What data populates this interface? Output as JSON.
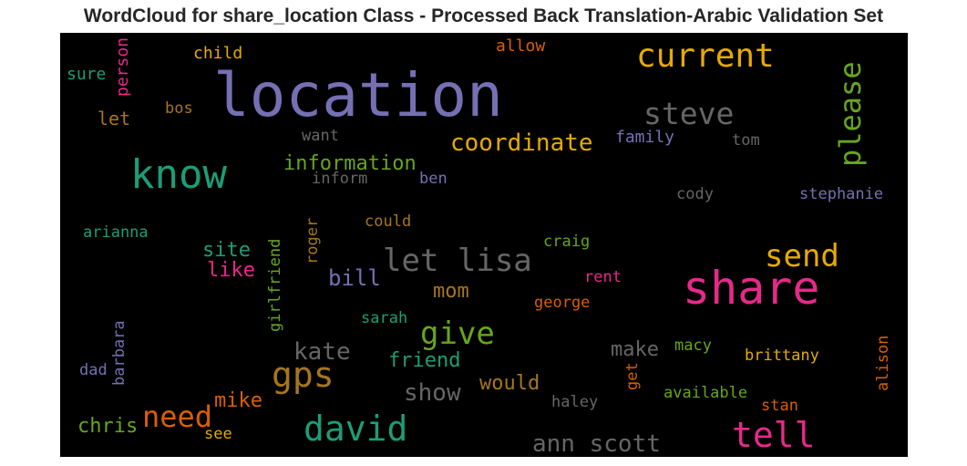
{
  "title": "WordCloud for share_location Class - Processed Back Translation-Arabic Validation Set",
  "background": "#000000",
  "words": [
    {
      "text": "location",
      "color": "#7570b3"
    },
    {
      "text": "share",
      "color": "#e7298a"
    },
    {
      "text": "know",
      "color": "#1b9e77"
    },
    {
      "text": "david",
      "color": "#1b9e77"
    },
    {
      "text": "tell",
      "color": "#e7298a"
    },
    {
      "text": "current",
      "color": "#e6ab02"
    },
    {
      "text": "steve",
      "color": "#666666"
    },
    {
      "text": "let lisa",
      "color": "#666666"
    },
    {
      "text": "please",
      "color": "#66a61e"
    },
    {
      "text": "send",
      "color": "#e6ab02"
    },
    {
      "text": "coordinate",
      "color": "#e6ab02"
    },
    {
      "text": "gps",
      "color": "#a6761d"
    },
    {
      "text": "give",
      "color": "#66a61e"
    },
    {
      "text": "need",
      "color": "#d95f02"
    },
    {
      "text": "ann scott",
      "color": "#666666"
    },
    {
      "text": "kate",
      "color": "#666666"
    },
    {
      "text": "show",
      "color": "#666666"
    },
    {
      "text": "information",
      "color": "#66a61e"
    },
    {
      "text": "would",
      "color": "#a6761d"
    },
    {
      "text": "friend",
      "color": "#1b9e77"
    },
    {
      "text": "make",
      "color": "#666666"
    },
    {
      "text": "chris",
      "color": "#66a61e"
    },
    {
      "text": "mike",
      "color": "#d95f02"
    },
    {
      "text": "bill",
      "color": "#7570b3"
    },
    {
      "text": "mom",
      "color": "#a6761d"
    },
    {
      "text": "site",
      "color": "#1b9e77"
    },
    {
      "text": "like",
      "color": "#e7298a"
    },
    {
      "text": "let",
      "color": "#a6761d"
    },
    {
      "text": "child",
      "color": "#e6ab02"
    },
    {
      "text": "allow",
      "color": "#d95f02"
    },
    {
      "text": "sure",
      "color": "#1b9e77"
    },
    {
      "text": "person",
      "color": "#e7298a"
    },
    {
      "text": "bos",
      "color": "#a6761d"
    },
    {
      "text": "want",
      "color": "#666666"
    },
    {
      "text": "family",
      "color": "#7570b3"
    },
    {
      "text": "tom",
      "color": "#666666"
    },
    {
      "text": "inform",
      "color": "#666666"
    },
    {
      "text": "ben",
      "color": "#7570b3"
    },
    {
      "text": "cody",
      "color": "#666666"
    },
    {
      "text": "stephanie",
      "color": "#7570b3"
    },
    {
      "text": "arianna",
      "color": "#1b9e77"
    },
    {
      "text": "could",
      "color": "#a6761d"
    },
    {
      "text": "craig",
      "color": "#66a61e"
    },
    {
      "text": "roger",
      "color": "#a6761d"
    },
    {
      "text": "girlfriend",
      "color": "#66a61e"
    },
    {
      "text": "rent",
      "color": "#e7298a"
    },
    {
      "text": "george",
      "color": "#d95f02"
    },
    {
      "text": "sarah",
      "color": "#1b9e77"
    },
    {
      "text": "barbara",
      "color": "#7570b3"
    },
    {
      "text": "dad",
      "color": "#7570b3"
    },
    {
      "text": "macy",
      "color": "#66a61e"
    },
    {
      "text": "brittany",
      "color": "#e6ab02"
    },
    {
      "text": "alison",
      "color": "#d95f02"
    },
    {
      "text": "get",
      "color": "#d95f02"
    },
    {
      "text": "available",
      "color": "#66a61e"
    },
    {
      "text": "stan",
      "color": "#d95f02"
    },
    {
      "text": "haley",
      "color": "#666666"
    },
    {
      "text": "see",
      "color": "#e6ab02"
    }
  ]
}
